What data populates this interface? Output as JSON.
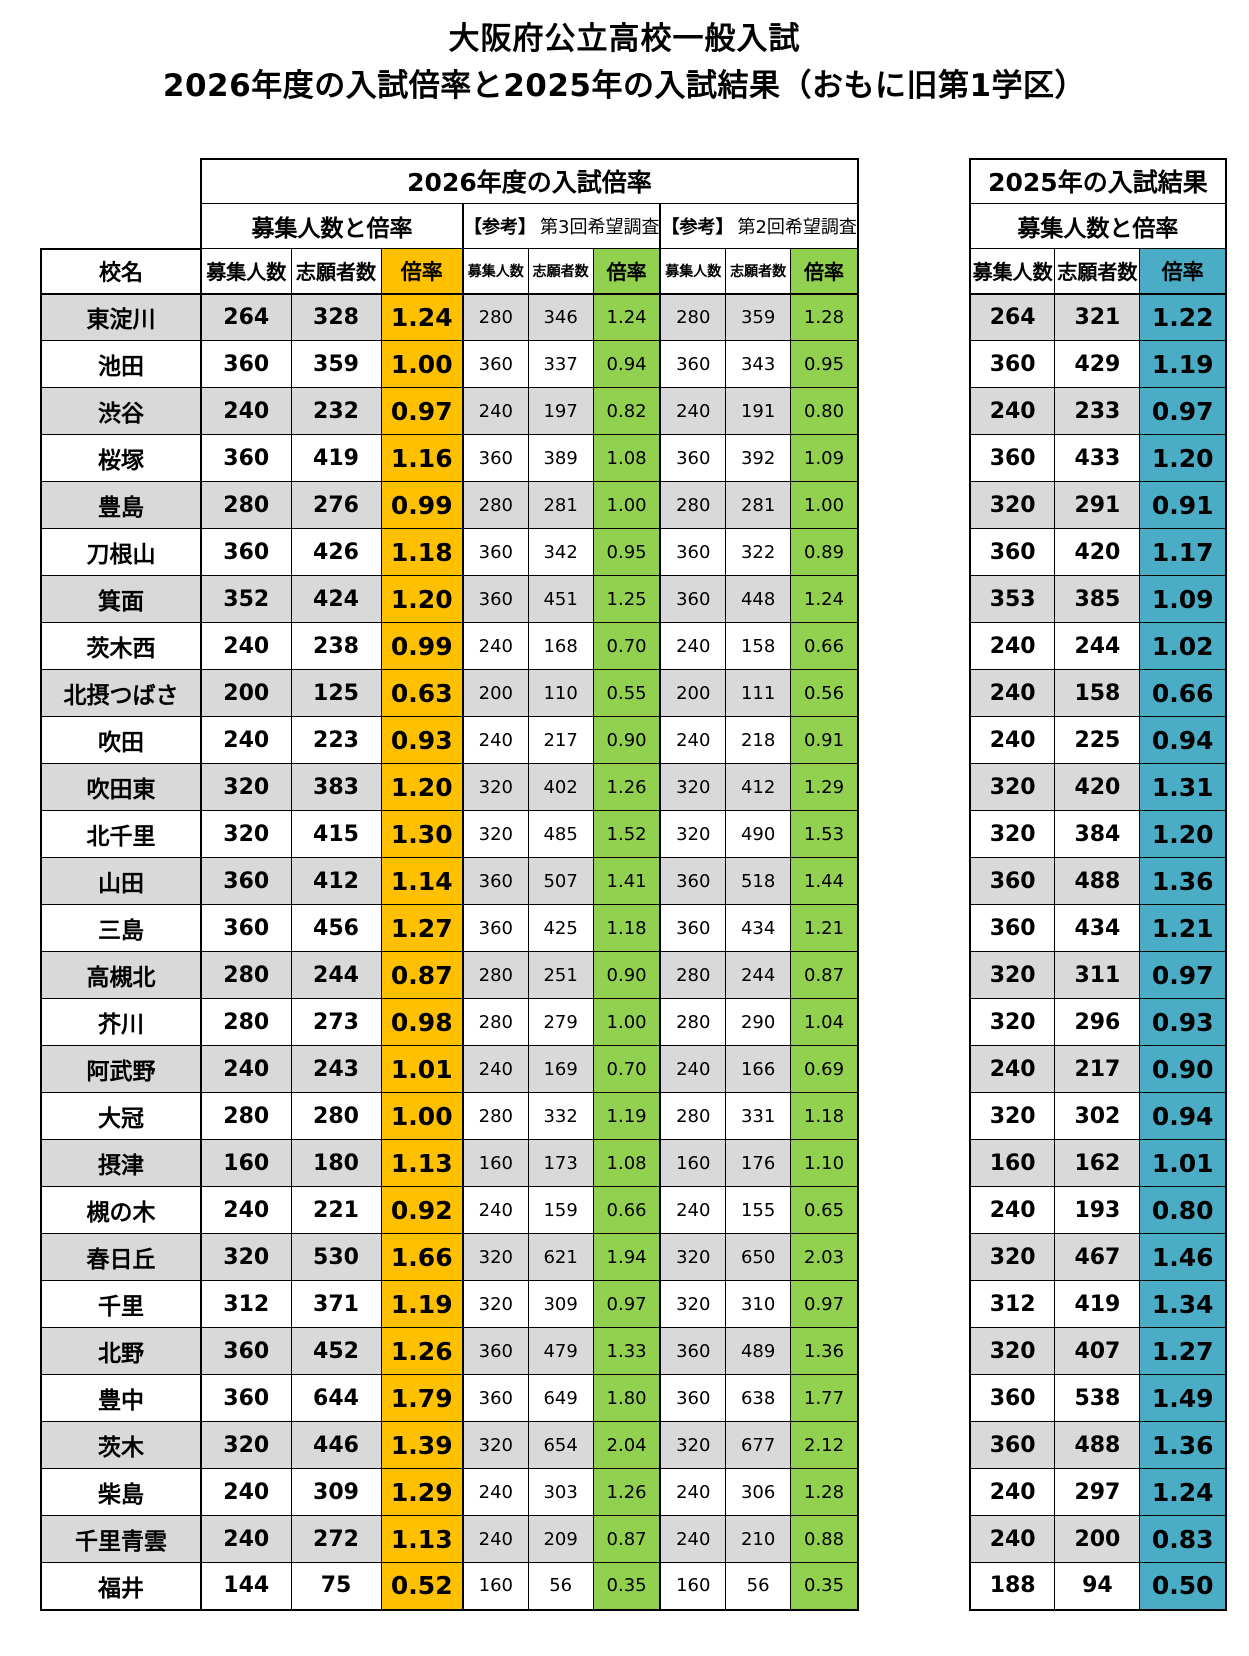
{
  "page_title": {
    "line1": "大阪府公立高校一般入試",
    "line2": "2026年度の入試倍率と2025年の入試結果（おもに旧第1学区）"
  },
  "colors": {
    "rate_2026": "#FFC000",
    "rate_survey": "#92D050",
    "rate_2025": "#4BACC6",
    "row_stripe": "#D9D9D9"
  },
  "main_table": {
    "title": "2026年度の入試倍率",
    "subheaders": {
      "recruit": "募集人数と倍率",
      "ref_prefix": "【参考】",
      "survey3": "第3回希望調査",
      "survey2": "第2回希望調査"
    },
    "school_header": "校名",
    "columns": {
      "capacity": "募集人数",
      "applicants": "志願者数",
      "rate": "倍率"
    }
  },
  "result_table": {
    "title": "2025年の入試結果",
    "subheader": "募集人数と倍率",
    "columns": {
      "capacity": "募集人数",
      "applicants": "志願者数",
      "rate": "倍率"
    }
  },
  "rows": [
    {
      "school": "東淀川",
      "y2026": [
        "264",
        "328",
        "1.24"
      ],
      "survey3": [
        "280",
        "346",
        "1.24"
      ],
      "survey2": [
        "280",
        "359",
        "1.28"
      ],
      "y2025": [
        "264",
        "321",
        "1.22"
      ]
    },
    {
      "school": "池田",
      "y2026": [
        "360",
        "359",
        "1.00"
      ],
      "survey3": [
        "360",
        "337",
        "0.94"
      ],
      "survey2": [
        "360",
        "343",
        "0.95"
      ],
      "y2025": [
        "360",
        "429",
        "1.19"
      ]
    },
    {
      "school": "渋谷",
      "y2026": [
        "240",
        "232",
        "0.97"
      ],
      "survey3": [
        "240",
        "197",
        "0.82"
      ],
      "survey2": [
        "240",
        "191",
        "0.80"
      ],
      "y2025": [
        "240",
        "233",
        "0.97"
      ]
    },
    {
      "school": "桜塚",
      "y2026": [
        "360",
        "419",
        "1.16"
      ],
      "survey3": [
        "360",
        "389",
        "1.08"
      ],
      "survey2": [
        "360",
        "392",
        "1.09"
      ],
      "y2025": [
        "360",
        "433",
        "1.20"
      ]
    },
    {
      "school": "豊島",
      "y2026": [
        "280",
        "276",
        "0.99"
      ],
      "survey3": [
        "280",
        "281",
        "1.00"
      ],
      "survey2": [
        "280",
        "281",
        "1.00"
      ],
      "y2025": [
        "320",
        "291",
        "0.91"
      ]
    },
    {
      "school": "刀根山",
      "y2026": [
        "360",
        "426",
        "1.18"
      ],
      "survey3": [
        "360",
        "342",
        "0.95"
      ],
      "survey2": [
        "360",
        "322",
        "0.89"
      ],
      "y2025": [
        "360",
        "420",
        "1.17"
      ]
    },
    {
      "school": "箕面",
      "y2026": [
        "352",
        "424",
        "1.20"
      ],
      "survey3": [
        "360",
        "451",
        "1.25"
      ],
      "survey2": [
        "360",
        "448",
        "1.24"
      ],
      "y2025": [
        "353",
        "385",
        "1.09"
      ]
    },
    {
      "school": "茨木西",
      "y2026": [
        "240",
        "238",
        "0.99"
      ],
      "survey3": [
        "240",
        "168",
        "0.70"
      ],
      "survey2": [
        "240",
        "158",
        "0.66"
      ],
      "y2025": [
        "240",
        "244",
        "1.02"
      ]
    },
    {
      "school": "北摂つばさ",
      "y2026": [
        "200",
        "125",
        "0.63"
      ],
      "survey3": [
        "200",
        "110",
        "0.55"
      ],
      "survey2": [
        "200",
        "111",
        "0.56"
      ],
      "y2025": [
        "240",
        "158",
        "0.66"
      ]
    },
    {
      "school": "吹田",
      "y2026": [
        "240",
        "223",
        "0.93"
      ],
      "survey3": [
        "240",
        "217",
        "0.90"
      ],
      "survey2": [
        "240",
        "218",
        "0.91"
      ],
      "y2025": [
        "240",
        "225",
        "0.94"
      ]
    },
    {
      "school": "吹田東",
      "y2026": [
        "320",
        "383",
        "1.20"
      ],
      "survey3": [
        "320",
        "402",
        "1.26"
      ],
      "survey2": [
        "320",
        "412",
        "1.29"
      ],
      "y2025": [
        "320",
        "420",
        "1.31"
      ]
    },
    {
      "school": "北千里",
      "y2026": [
        "320",
        "415",
        "1.30"
      ],
      "survey3": [
        "320",
        "485",
        "1.52"
      ],
      "survey2": [
        "320",
        "490",
        "1.53"
      ],
      "y2025": [
        "320",
        "384",
        "1.20"
      ]
    },
    {
      "school": "山田",
      "y2026": [
        "360",
        "412",
        "1.14"
      ],
      "survey3": [
        "360",
        "507",
        "1.41"
      ],
      "survey2": [
        "360",
        "518",
        "1.44"
      ],
      "y2025": [
        "360",
        "488",
        "1.36"
      ]
    },
    {
      "school": "三島",
      "y2026": [
        "360",
        "456",
        "1.27"
      ],
      "survey3": [
        "360",
        "425",
        "1.18"
      ],
      "survey2": [
        "360",
        "434",
        "1.21"
      ],
      "y2025": [
        "360",
        "434",
        "1.21"
      ]
    },
    {
      "school": "高槻北",
      "y2026": [
        "280",
        "244",
        "0.87"
      ],
      "survey3": [
        "280",
        "251",
        "0.90"
      ],
      "survey2": [
        "280",
        "244",
        "0.87"
      ],
      "y2025": [
        "320",
        "311",
        "0.97"
      ]
    },
    {
      "school": "芥川",
      "y2026": [
        "280",
        "273",
        "0.98"
      ],
      "survey3": [
        "280",
        "279",
        "1.00"
      ],
      "survey2": [
        "280",
        "290",
        "1.04"
      ],
      "y2025": [
        "320",
        "296",
        "0.93"
      ]
    },
    {
      "school": "阿武野",
      "y2026": [
        "240",
        "243",
        "1.01"
      ],
      "survey3": [
        "240",
        "169",
        "0.70"
      ],
      "survey2": [
        "240",
        "166",
        "0.69"
      ],
      "y2025": [
        "240",
        "217",
        "0.90"
      ]
    },
    {
      "school": "大冠",
      "y2026": [
        "280",
        "280",
        "1.00"
      ],
      "survey3": [
        "280",
        "332",
        "1.19"
      ],
      "survey2": [
        "280",
        "331",
        "1.18"
      ],
      "y2025": [
        "320",
        "302",
        "0.94"
      ]
    },
    {
      "school": "摂津",
      "y2026": [
        "160",
        "180",
        "1.13"
      ],
      "survey3": [
        "160",
        "173",
        "1.08"
      ],
      "survey2": [
        "160",
        "176",
        "1.10"
      ],
      "y2025": [
        "160",
        "162",
        "1.01"
      ]
    },
    {
      "school": "槻の木",
      "y2026": [
        "240",
        "221",
        "0.92"
      ],
      "survey3": [
        "240",
        "159",
        "0.66"
      ],
      "survey2": [
        "240",
        "155",
        "0.65"
      ],
      "y2025": [
        "240",
        "193",
        "0.80"
      ]
    },
    {
      "school": "春日丘",
      "y2026": [
        "320",
        "530",
        "1.66"
      ],
      "survey3": [
        "320",
        "621",
        "1.94"
      ],
      "survey2": [
        "320",
        "650",
        "2.03"
      ],
      "y2025": [
        "320",
        "467",
        "1.46"
      ]
    },
    {
      "school": "千里",
      "y2026": [
        "312",
        "371",
        "1.19"
      ],
      "survey3": [
        "320",
        "309",
        "0.97"
      ],
      "survey2": [
        "320",
        "310",
        "0.97"
      ],
      "y2025": [
        "312",
        "419",
        "1.34"
      ]
    },
    {
      "school": "北野",
      "y2026": [
        "360",
        "452",
        "1.26"
      ],
      "survey3": [
        "360",
        "479",
        "1.33"
      ],
      "survey2": [
        "360",
        "489",
        "1.36"
      ],
      "y2025": [
        "320",
        "407",
        "1.27"
      ]
    },
    {
      "school": "豊中",
      "y2026": [
        "360",
        "644",
        "1.79"
      ],
      "survey3": [
        "360",
        "649",
        "1.80"
      ],
      "survey2": [
        "360",
        "638",
        "1.77"
      ],
      "y2025": [
        "360",
        "538",
        "1.49"
      ]
    },
    {
      "school": "茨木",
      "y2026": [
        "320",
        "446",
        "1.39"
      ],
      "survey3": [
        "320",
        "654",
        "2.04"
      ],
      "survey2": [
        "320",
        "677",
        "2.12"
      ],
      "y2025": [
        "360",
        "488",
        "1.36"
      ]
    },
    {
      "school": "柴島",
      "y2026": [
        "240",
        "309",
        "1.29"
      ],
      "survey3": [
        "240",
        "303",
        "1.26"
      ],
      "survey2": [
        "240",
        "306",
        "1.28"
      ],
      "y2025": [
        "240",
        "297",
        "1.24"
      ]
    },
    {
      "school": "千里青雲",
      "y2026": [
        "240",
        "272",
        "1.13"
      ],
      "survey3": [
        "240",
        "209",
        "0.87"
      ],
      "survey2": [
        "240",
        "210",
        "0.88"
      ],
      "y2025": [
        "240",
        "200",
        "0.83"
      ]
    },
    {
      "school": "福井",
      "y2026": [
        "144",
        "75",
        "0.52"
      ],
      "survey3": [
        "160",
        "56",
        "0.35"
      ],
      "survey2": [
        "160",
        "56",
        "0.35"
      ],
      "y2025": [
        "188",
        "94",
        "0.50"
      ]
    }
  ]
}
